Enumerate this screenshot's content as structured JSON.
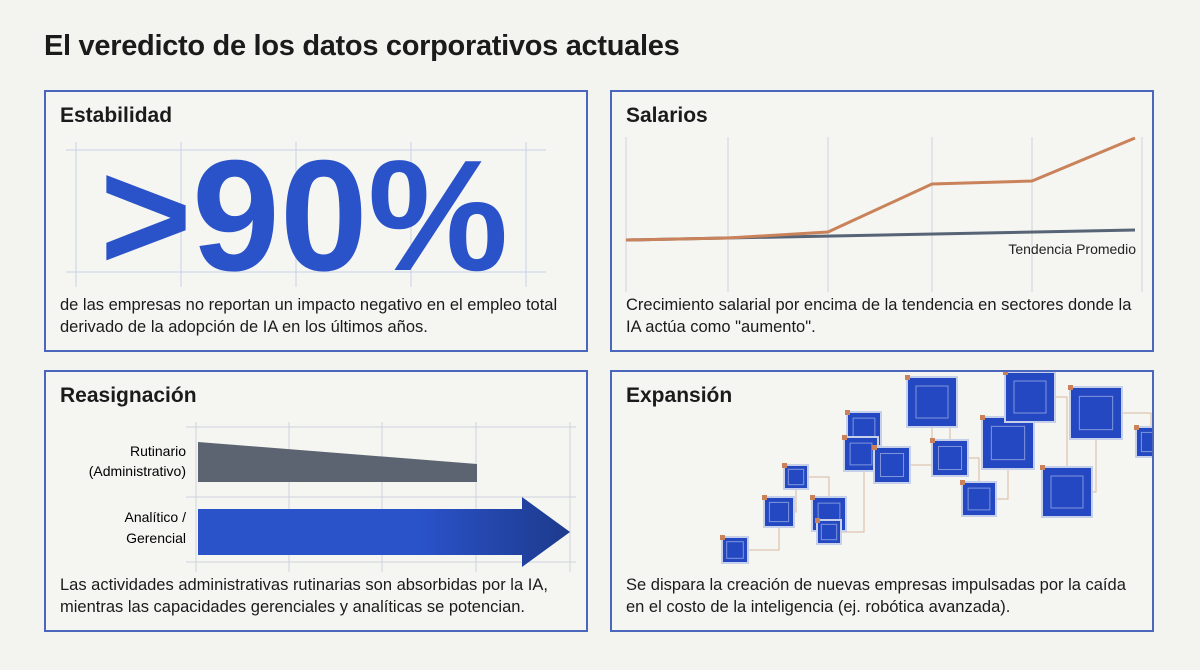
{
  "header": {
    "title": "El veredicto de los datos corporativos actuales"
  },
  "panels": [
    {
      "title": "Estabilidad",
      "figure": ">90%",
      "text": "de las empresas no reportan un impacto negativo en el empleo total derivado de la adopción de IA en los últimos años."
    },
    {
      "title": "Salarios",
      "label": "Tendencia Promedio",
      "text": "Crecimiento salarial por encima de la tendencia en sectores donde la IA actúa como \"aumento\"."
    },
    {
      "title": "Reasignación",
      "bars": [
        [
          "Rutinario",
          "(Administrativo)"
        ],
        [
          "Analítico /",
          "Gerencial"
        ]
      ],
      "text": "Las actividades administrativas rutinarias son absorbidas por la IA, mientras las capacidades gerenciales y analíticas se potencian."
    },
    {
      "title": "Expansión",
      "text": "Se dispara la creación de nuevas empresas impulsadas por la caída en el costo de la inteligencia (ej. robótica avanzada)."
    }
  ]
}
